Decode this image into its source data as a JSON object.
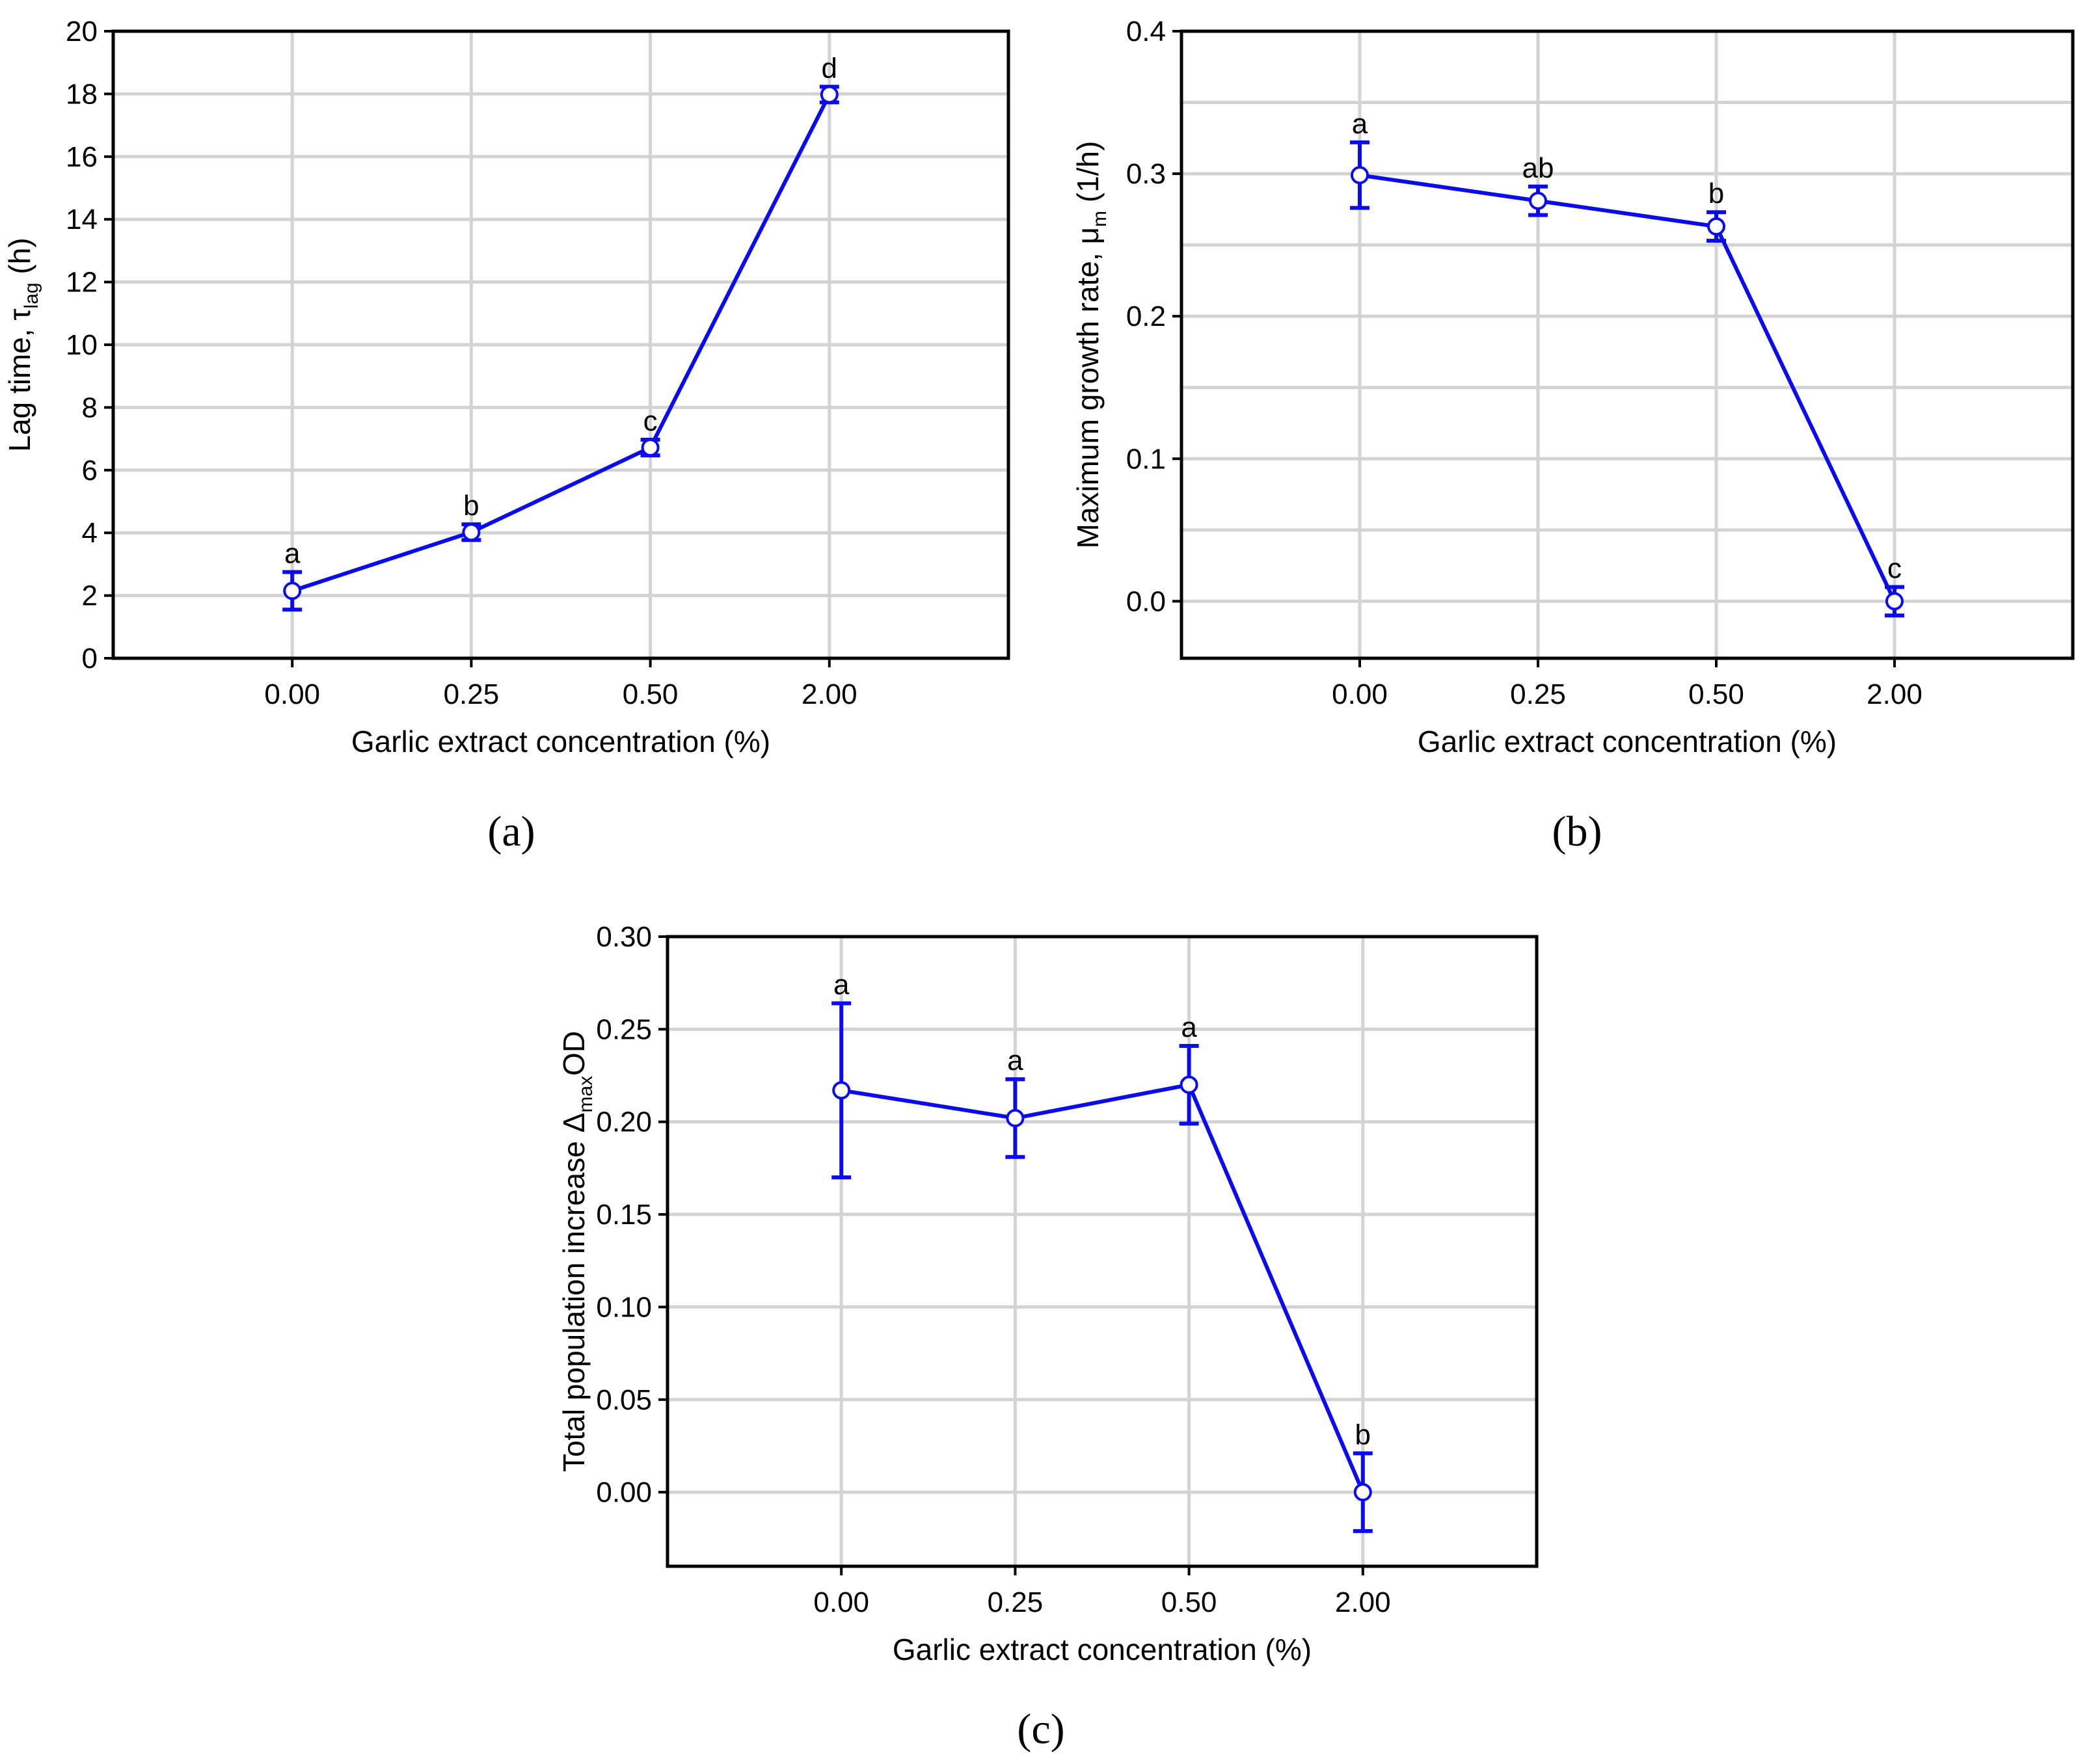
{
  "chart_data": [
    {
      "type": "line",
      "panel_label": "(a)",
      "xlabel": "Garlic extract concentration (%)",
      "ylabel": {
        "main": "Lag time, τ",
        "sub": "lag",
        "tail": " (h)"
      },
      "categories": [
        "0.00",
        "0.25",
        "0.50",
        "2.00"
      ],
      "ylim": [
        0,
        20
      ],
      "yticks": [
        "0",
        "2",
        "4",
        "6",
        "8",
        "10",
        "12",
        "14",
        "16",
        "18",
        "20"
      ],
      "ytick_values": [
        0,
        2,
        4,
        6,
        8,
        10,
        12,
        14,
        16,
        18,
        20
      ],
      "grid": true,
      "series": [
        {
          "name": "Lag time",
          "color": "#0b0bf0",
          "values": [
            2.15,
            4.02,
            6.72,
            17.98
          ],
          "errors": [
            0.6,
            0.25,
            0.25,
            0.25
          ]
        }
      ],
      "annotations": [
        "a",
        "b",
        "c",
        "d"
      ]
    },
    {
      "type": "line",
      "panel_label": "(b)",
      "xlabel": "Garlic extract concentration (%)",
      "ylabel": {
        "main": "Maximum growth rate, μ",
        "sub": "m",
        "tail": " (1/h)"
      },
      "categories": [
        "0.00",
        "0.25",
        "0.50",
        "2.00"
      ],
      "ylim": [
        -0.04,
        0.4
      ],
      "yticks": [
        "0.0",
        "0.1",
        "0.2",
        "0.3",
        "0.4"
      ],
      "ytick_values": [
        0.0,
        0.1,
        0.2,
        0.3,
        0.4
      ],
      "extra_gridlines": [
        0.05,
        0.15,
        0.25,
        0.35
      ],
      "grid": true,
      "series": [
        {
          "name": "Maximum growth rate",
          "color": "#0b0bf0",
          "values": [
            0.299,
            0.281,
            0.263,
            0.0
          ],
          "errors": [
            0.023,
            0.01,
            0.01,
            0.01
          ]
        }
      ],
      "annotations": [
        "a",
        "ab",
        "b",
        "c"
      ]
    },
    {
      "type": "line",
      "panel_label": "(c)",
      "xlabel": "Garlic extract concentration (%)",
      "ylabel": {
        "main": "Total population increase Δ",
        "sub": "max",
        "tail": "OD"
      },
      "categories": [
        "0.00",
        "0.25",
        "0.50",
        "2.00"
      ],
      "ylim": [
        -0.04,
        0.3
      ],
      "yticks": [
        "0.00",
        "0.05",
        "0.10",
        "0.15",
        "0.20",
        "0.25",
        "0.30"
      ],
      "ytick_values": [
        0.0,
        0.05,
        0.1,
        0.15,
        0.2,
        0.25,
        0.3
      ],
      "grid": true,
      "series": [
        {
          "name": "Total population increase",
          "color": "#0b0bf0",
          "values": [
            0.217,
            0.202,
            0.22,
            0.0
          ],
          "errors": [
            0.047,
            0.021,
            0.021,
            0.021
          ]
        }
      ],
      "annotations": [
        "a",
        "a",
        "a",
        "b"
      ]
    }
  ]
}
